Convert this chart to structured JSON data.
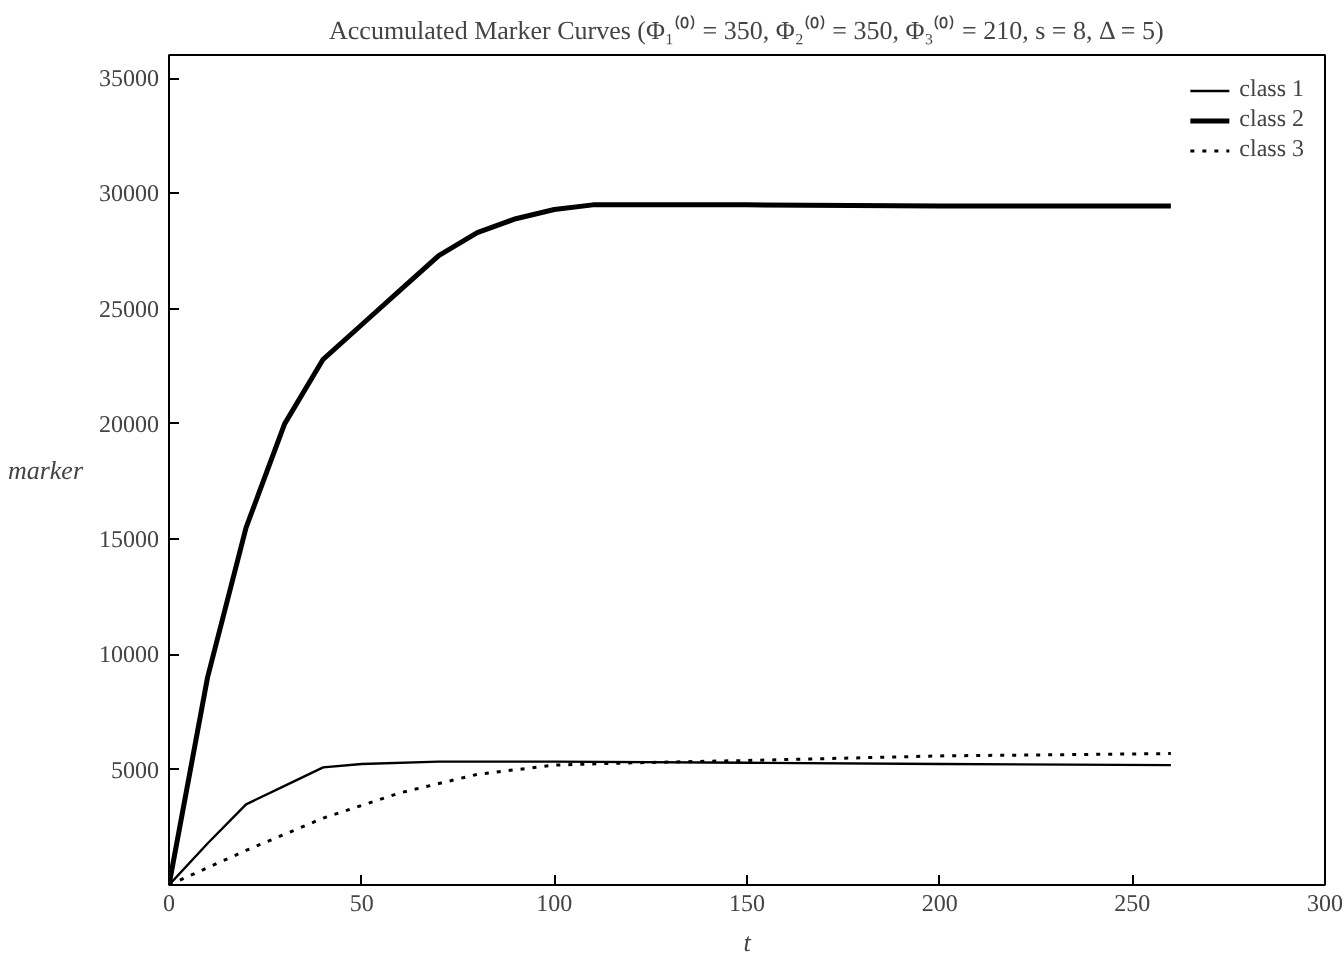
{
  "chart_data": {
    "type": "line",
    "title": "Accumulated Marker Curves (Φ₁⁽⁰⁾ = 350, Φ₂⁽⁰⁾ = 350, Φ₃⁽⁰⁾ = 210, s = 8, Δ = 5)",
    "xlabel": "t",
    "ylabel": "marker",
    "xlim": [
      0,
      300
    ],
    "ylim": [
      0,
      36000
    ],
    "xticks": [
      0,
      50,
      100,
      150,
      200,
      250,
      300
    ],
    "yticks": [
      5000,
      10000,
      15000,
      20000,
      25000,
      30000,
      35000
    ],
    "grid": false,
    "legend": "top right",
    "marker": "none",
    "series": [
      {
        "name": "class 1",
        "color": "#000000",
        "line_style": "solid",
        "x": [
          0,
          10,
          20,
          30,
          40,
          50,
          70,
          100,
          150,
          200,
          260
        ],
        "values": [
          0,
          1800,
          3500,
          4300,
          5100,
          5250,
          5350,
          5350,
          5300,
          5250,
          5200
        ]
      },
      {
        "name": "class 2",
        "color": "#000000",
        "line_style": "solid",
        "x": [
          0,
          10,
          20,
          30,
          40,
          50,
          60,
          70,
          80,
          90,
          100,
          110,
          150,
          200,
          260
        ],
        "values": [
          0,
          9000,
          15500,
          20000,
          22800,
          24300,
          25800,
          27300,
          28300,
          28900,
          29300,
          29500,
          29500,
          29450,
          29450
        ]
      },
      {
        "name": "class 3",
        "color": "#000000",
        "line_style": "dotted",
        "x": [
          0,
          20,
          40,
          60,
          80,
          100,
          120,
          150,
          200,
          260
        ],
        "values": [
          0,
          1500,
          2900,
          4000,
          4800,
          5200,
          5300,
          5400,
          5600,
          5700
        ]
      }
    ]
  }
}
